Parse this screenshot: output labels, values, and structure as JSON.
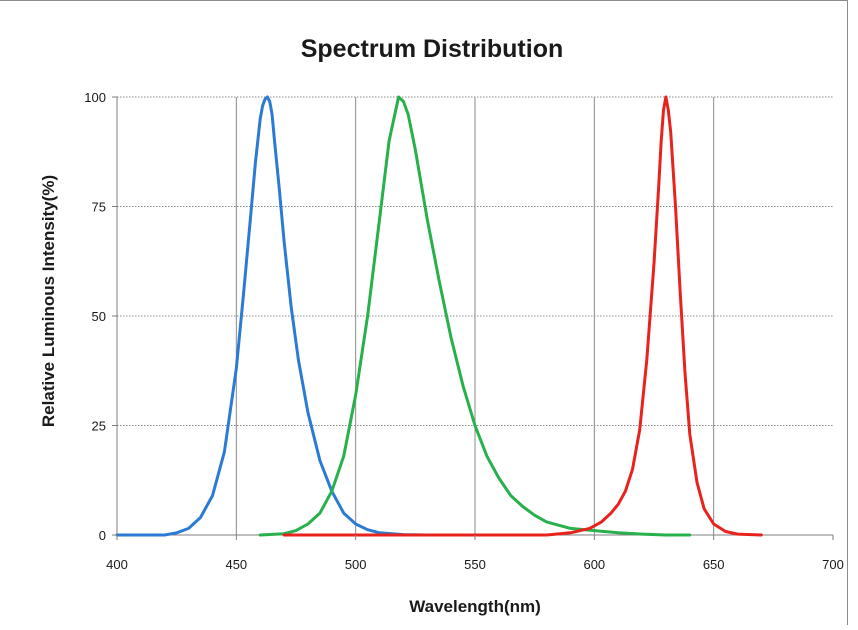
{
  "chart_data": {
    "type": "line",
    "title": "Spectrum Distribution",
    "xlabel": "Wavelength(nm)",
    "ylabel": "Relative Luminous Intensity(%)",
    "xlim": [
      400,
      700
    ],
    "ylim": [
      0,
      100
    ],
    "xticks": [
      400,
      450,
      500,
      550,
      600,
      650,
      700
    ],
    "yticks": [
      0,
      25,
      50,
      75,
      100
    ],
    "grid": {
      "vertical": true,
      "horizontal": true,
      "vertical_style": "solid",
      "horizontal_style": "dotted"
    },
    "legend": "none",
    "series": [
      {
        "color": "#2b7bd4",
        "x": [
          400,
          420,
          425,
          430,
          435,
          440,
          445,
          450,
          453,
          456,
          458,
          460,
          461,
          462,
          463,
          464,
          465,
          466,
          468,
          470,
          473,
          476,
          480,
          485,
          490,
          495,
          500,
          505,
          510,
          520,
          530,
          540
        ],
        "y": [
          0,
          0,
          0.5,
          1.5,
          4,
          9,
          19,
          38,
          55,
          73,
          85,
          95,
          98,
          99.5,
          100,
          99,
          96,
          90,
          79,
          67,
          52,
          40,
          28,
          17,
          10,
          5,
          2.5,
          1.2,
          0.5,
          0.1,
          0,
          0
        ]
      },
      {
        "color": "#27b04b",
        "x": [
          460,
          470,
          475,
          480,
          485,
          490,
          495,
          500,
          505,
          510,
          514,
          518,
          520,
          522,
          525,
          530,
          535,
          540,
          545,
          550,
          555,
          560,
          565,
          570,
          575,
          580,
          590,
          600,
          610,
          620,
          630,
          640
        ],
        "y": [
          0,
          0.3,
          1,
          2.5,
          5,
          10,
          18,
          32,
          50,
          72,
          90,
          100,
          99,
          96,
          88,
          72,
          58,
          45,
          34,
          25,
          18,
          13,
          9,
          6.5,
          4.5,
          3,
          1.5,
          1,
          0.5,
          0.2,
          0,
          0
        ]
      },
      {
        "color": "#e8231e",
        "x": [
          470,
          500,
          560,
          580,
          590,
          598,
          603,
          607,
          610,
          613,
          616,
          619,
          622,
          625,
          627,
          628,
          629,
          630,
          631,
          632,
          634,
          636,
          638,
          640,
          643,
          646,
          650,
          655,
          660,
          670
        ],
        "y": [
          0,
          0,
          0,
          0,
          0.5,
          1.5,
          3,
          5,
          7,
          10,
          15,
          24,
          40,
          62,
          80,
          90,
          97,
          100,
          97,
          92,
          75,
          55,
          37,
          23,
          12,
          6,
          2.5,
          0.8,
          0.2,
          0
        ]
      }
    ]
  }
}
